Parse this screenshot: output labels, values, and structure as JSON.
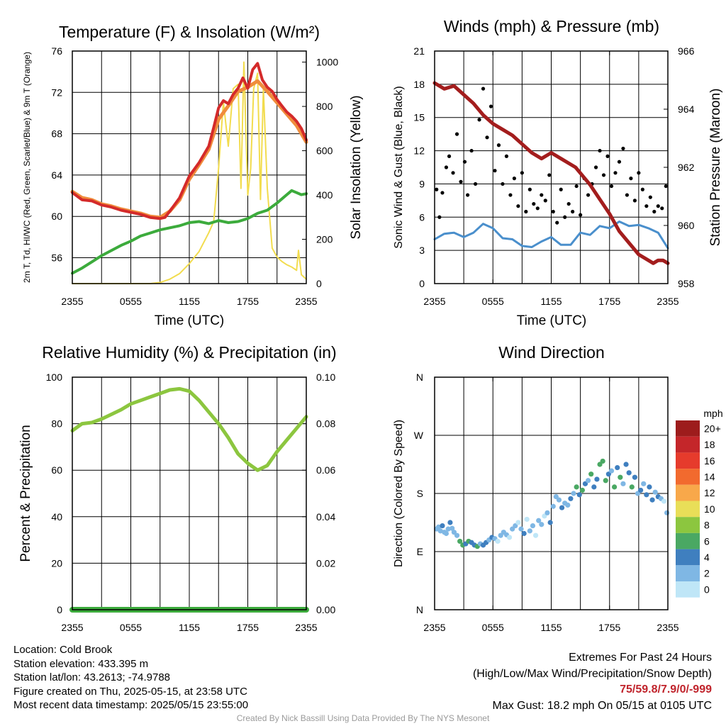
{
  "chart_data": [
    {
      "type": "line",
      "title": "Temperature (F) & Insolation (W/m²)",
      "xlabel": "Time (UTC)",
      "ylabel": "2m T, Td, HI/WC (Red, Green, Scarlet/Blue) & 9m T (Orange)",
      "ylabel_right": "Solar Insolation (Yellow)",
      "x_ticks": [
        "2355",
        "0555",
        "1155",
        "1755",
        "2355"
      ],
      "x_range_hours": [
        0,
        24
      ],
      "ylim": [
        53.5,
        76
      ],
      "yticks": [
        56,
        60,
        64,
        68,
        72,
        76
      ],
      "ylim_right": [
        0,
        1050
      ],
      "yticks_right": [
        0,
        200,
        400,
        600,
        800,
        1000
      ],
      "grid": true,
      "series": [
        {
          "name": "2m T",
          "color": "#d42a2a",
          "axis": "left",
          "x_hours": [
            0,
            1,
            2,
            3,
            4,
            5,
            6,
            7,
            8,
            9,
            9.5,
            10,
            11,
            12,
            13,
            14,
            14.5,
            15,
            15.5,
            16,
            16.5,
            17,
            17.5,
            18,
            18.5,
            19,
            19.5,
            20,
            20.5,
            21,
            21.5,
            22,
            22.5,
            23,
            23.5,
            24
          ],
          "values": [
            62.3,
            61.6,
            61.5,
            61.1,
            60.9,
            60.6,
            60.4,
            60.2,
            59.9,
            59.8,
            59.9,
            60.5,
            61.8,
            63.9,
            65.2,
            66.8,
            68.6,
            70.5,
            71.2,
            70.9,
            71.8,
            72.4,
            73.4,
            72.4,
            74.2,
            74.8,
            73.2,
            72.5,
            72.1,
            71.3,
            70.7,
            70.1,
            69.7,
            69.2,
            68.5,
            67.4
          ]
        },
        {
          "name": "2m Td",
          "color": "#3cab3c",
          "axis": "left",
          "x_hours": [
            0,
            1,
            2,
            3,
            4,
            5,
            6,
            7,
            8,
            9,
            10,
            11,
            12,
            13,
            14,
            15,
            16,
            17,
            18,
            19,
            20,
            21,
            22,
            22.5,
            23,
            23.5,
            24
          ],
          "values": [
            54.5,
            55.0,
            55.6,
            56.2,
            56.7,
            57.2,
            57.6,
            58.1,
            58.4,
            58.7,
            58.9,
            59.1,
            59.4,
            59.5,
            59.3,
            59.6,
            59.4,
            59.5,
            59.8,
            60.3,
            60.6,
            61.3,
            62.1,
            62.5,
            62.3,
            62.1,
            62.2
          ]
        },
        {
          "name": "9m T",
          "color": "#f08c3c",
          "axis": "left",
          "x_hours": [
            0,
            1,
            2,
            3,
            4,
            5,
            6,
            7,
            8,
            9,
            10,
            11,
            12,
            13,
            14,
            15,
            16,
            17,
            18,
            19,
            20,
            21,
            22,
            23,
            24
          ],
          "values": [
            62.4,
            61.8,
            61.6,
            61.2,
            61.0,
            60.7,
            60.5,
            60.3,
            60.0,
            59.9,
            60.5,
            61.6,
            63.6,
            65.0,
            66.5,
            69.4,
            70.7,
            72.1,
            72.5,
            73.1,
            72.1,
            71.0,
            69.9,
            68.8,
            67.2
          ]
        },
        {
          "name": "Solar Insolation",
          "color": "#f2dc4e",
          "axis": "right",
          "x_hours": [
            0,
            8,
            9,
            10,
            11,
            12,
            13,
            14,
            14.5,
            15,
            15.5,
            16,
            16.5,
            17,
            17.3,
            17.6,
            18,
            18.3,
            18.6,
            19,
            19.3,
            19.6,
            20,
            20.5,
            21,
            21.5,
            22,
            22.5,
            23,
            23.2,
            23.5,
            24
          ],
          "values": [
            0,
            0,
            5,
            20,
            45,
            90,
            145,
            230,
            280,
            520,
            820,
            620,
            880,
            900,
            430,
            1000,
            400,
            520,
            880,
            950,
            380,
            880,
            430,
            160,
            120,
            100,
            85,
            75,
            60,
            150,
            40,
            20
          ]
        }
      ]
    },
    {
      "type": "scatter",
      "title": "Winds (mph) & Pressure (mb)",
      "xlabel": "Time (UTC)",
      "ylabel": "Sonic Wind & Gust (Blue, Black)",
      "ylabel_right": "Station Pressure (Maroon)",
      "x_ticks": [
        "2355",
        "0555",
        "1155",
        "1755",
        "2355"
      ],
      "x_range_hours": [
        0,
        24
      ],
      "ylim": [
        0,
        21
      ],
      "yticks": [
        0,
        3,
        6,
        9,
        12,
        15,
        18,
        21
      ],
      "ylim_right": [
        958,
        966
      ],
      "yticks_right": [
        958,
        960,
        962,
        964,
        966
      ],
      "grid": true,
      "series": [
        {
          "name": "Sonic Wind",
          "color": "#4a8fcc",
          "kind": "line",
          "x_hours": [
            0,
            1,
            2,
            3,
            4,
            5,
            6,
            7,
            8,
            9,
            10,
            11,
            12,
            13,
            14,
            15,
            16,
            17,
            18,
            19,
            20,
            21,
            22,
            23,
            24
          ],
          "values": [
            4.0,
            4.5,
            4.6,
            4.2,
            4.6,
            5.4,
            5.0,
            4.1,
            4.0,
            3.4,
            3.3,
            3.8,
            4.2,
            3.5,
            3.5,
            4.6,
            4.4,
            5.2,
            5.0,
            5.6,
            5.2,
            5.3,
            5.0,
            4.6,
            3.2
          ]
        },
        {
          "name": "Gust",
          "color": "#000000",
          "kind": "scatter",
          "x_hours": [
            0.2,
            0.5,
            0.8,
            1.2,
            1.5,
            1.9,
            2.3,
            2.7,
            3.1,
            3.4,
            3.8,
            4.2,
            4.6,
            5.0,
            5.4,
            5.8,
            6.2,
            6.6,
            7.0,
            7.4,
            7.8,
            8.2,
            8.6,
            9.0,
            9.4,
            9.8,
            10.2,
            10.6,
            11.0,
            11.4,
            11.8,
            12.2,
            12.6,
            13.0,
            13.4,
            13.8,
            14.2,
            14.6,
            15.0,
            15.4,
            15.8,
            16.2,
            16.6,
            17.0,
            17.4,
            17.8,
            18.2,
            18.6,
            19.0,
            19.4,
            19.8,
            20.2,
            20.6,
            21.0,
            21.4,
            21.8,
            22.2,
            22.6,
            23.0,
            23.4,
            23.8
          ],
          "values": [
            8.5,
            6.0,
            8.2,
            10.5,
            11.5,
            10.0,
            13.5,
            9.2,
            11.0,
            8.0,
            12.0,
            9.0,
            14.8,
            17.6,
            13.2,
            16.0,
            10.2,
            12.5,
            9.0,
            11.5,
            8.0,
            9.5,
            7.0,
            10.0,
            6.5,
            8.5,
            7.2,
            6.8,
            8.0,
            7.5,
            9.8,
            6.5,
            5.5,
            8.5,
            6.0,
            7.2,
            6.5,
            8.8,
            6.2,
            9.5,
            8.0,
            9.0,
            10.5,
            12.0,
            9.8,
            11.5,
            8.8,
            10.0,
            11.0,
            12.2,
            8.0,
            9.5,
            7.5,
            10.0,
            8.5,
            7.0,
            7.8,
            6.5,
            7.0,
            6.8,
            8.8
          ]
        },
        {
          "name": "Station Pressure",
          "color": "#a31d1d",
          "kind": "line",
          "axis": "right",
          "x_hours": [
            0,
            1,
            2,
            3,
            4,
            5,
            6,
            7,
            8,
            9,
            10,
            11,
            12,
            13,
            14,
            14.5,
            15,
            16,
            17,
            18,
            19,
            20,
            21,
            22,
            22.5,
            23,
            23.5,
            24
          ],
          "values": [
            964.9,
            964.7,
            964.8,
            964.5,
            964.2,
            963.8,
            963.5,
            963.3,
            963.1,
            962.8,
            962.5,
            962.3,
            962.5,
            962.3,
            962.1,
            962.0,
            961.8,
            961.4,
            960.9,
            960.4,
            959.8,
            959.4,
            959.0,
            958.8,
            958.7,
            958.8,
            958.8,
            958.7
          ]
        }
      ]
    },
    {
      "type": "line",
      "title": "Relative Humidity (%) & Precipitation (in)",
      "ylabel": "Percent & Precipitation",
      "x_ticks": [
        "2355",
        "0555",
        "1155",
        "1755",
        "2355"
      ],
      "x_range_hours": [
        0,
        24
      ],
      "ylim": [
        0,
        100
      ],
      "yticks": [
        0,
        20,
        40,
        60,
        80,
        100
      ],
      "ylim_right": [
        0,
        0.1
      ],
      "yticks_right": [
        "0.00",
        "0.02",
        "0.04",
        "0.06",
        "0.08",
        "0.10"
      ],
      "grid": true,
      "series": [
        {
          "name": "Relative Humidity",
          "color": "#8cc63f",
          "axis": "left",
          "x_hours": [
            0,
            1,
            2,
            3,
            4,
            5,
            6,
            7,
            8,
            9,
            10,
            11,
            12,
            13,
            14,
            15,
            16,
            17,
            18,
            19,
            20,
            21,
            22,
            23,
            24
          ],
          "values": [
            77,
            80,
            80.5,
            82,
            84,
            86,
            88.5,
            90,
            91.5,
            93,
            94.5,
            95,
            94,
            90,
            85,
            80,
            74,
            67,
            63,
            60,
            62,
            68,
            73,
            78,
            83
          ]
        },
        {
          "name": "Precipitation",
          "color": "#3cab3c",
          "axis": "right",
          "x_hours": [
            0,
            24
          ],
          "values": [
            0,
            0
          ]
        }
      ]
    },
    {
      "type": "scatter",
      "title": "Wind Direction",
      "ylabel": "Direction (Colored By Speed)",
      "x_ticks": [
        "2355",
        "0555",
        "1155",
        "1755",
        "2355"
      ],
      "x_range_hours": [
        0,
        24
      ],
      "y_ticks": [
        "N",
        "E",
        "S",
        "W",
        "N"
      ],
      "ylim_degrees": [
        0,
        360
      ],
      "grid": true,
      "legend": {
        "title": "mph",
        "position": "right",
        "labels": [
          "20+",
          "18",
          "16",
          "14",
          "12",
          "10",
          "8",
          "6",
          "4",
          "2",
          "0"
        ],
        "colors": [
          "#9d1c1c",
          "#c4262a",
          "#e63b2c",
          "#f26a2e",
          "#f8a84a",
          "#e9de58",
          "#8cc63f",
          "#4aa863",
          "#3f7fbf",
          "#7fb7e4",
          "#bfe6f7"
        ]
      },
      "points": {
        "x_hours": [
          0.2,
          0.4,
          0.6,
          0.8,
          1.0,
          1.2,
          1.4,
          1.6,
          1.8,
          2.0,
          2.3,
          2.6,
          2.9,
          3.2,
          3.5,
          3.8,
          4.1,
          4.4,
          4.7,
          5.0,
          5.3,
          5.6,
          5.9,
          6.2,
          6.5,
          6.8,
          7.1,
          7.4,
          7.7,
          8.0,
          8.3,
          8.6,
          8.9,
          9.2,
          9.5,
          9.8,
          10.1,
          10.4,
          10.7,
          11.0,
          11.3,
          11.6,
          11.9,
          12.2,
          12.5,
          12.8,
          13.1,
          13.4,
          13.7,
          14.0,
          14.3,
          14.6,
          14.9,
          15.2,
          15.5,
          15.8,
          16.1,
          16.4,
          16.7,
          17.0,
          17.3,
          17.6,
          17.9,
          18.2,
          18.5,
          18.8,
          19.1,
          19.4,
          19.7,
          20.0,
          20.3,
          20.6,
          20.9,
          21.2,
          21.5,
          21.8,
          22.1,
          22.4,
          22.7,
          23.0,
          23.3,
          23.6,
          23.9
        ],
        "degrees": [
          125,
          128,
          122,
          130,
          120,
          118,
          125,
          135,
          126,
          120,
          115,
          106,
          100,
          102,
          106,
          104,
          100,
          98,
          102,
          100,
          104,
          108,
          112,
          110,
          106,
          115,
          120,
          116,
          112,
          125,
          130,
          135,
          125,
          118,
          140,
          122,
          130,
          115,
          138,
          132,
          145,
          150,
          135,
          160,
          175,
          170,
          158,
          165,
          162,
          172,
          180,
          190,
          178,
          185,
          195,
          200,
          210,
          190,
          202,
          225,
          230,
          200,
          210,
          215,
          190,
          220,
          205,
          195,
          225,
          212,
          190,
          205,
          180,
          185,
          195,
          178,
          190,
          170,
          182,
          175,
          172,
          168,
          150
        ],
        "speed_mph": [
          3,
          2,
          3,
          4,
          2,
          3,
          3,
          4,
          2,
          3,
          3,
          6,
          6,
          4,
          7,
          5,
          4,
          6,
          3,
          4,
          4,
          2,
          4,
          3,
          1,
          2,
          3,
          2,
          1,
          3,
          2,
          1,
          2,
          4,
          1,
          2,
          3,
          1,
          2,
          3,
          1,
          2,
          4,
          3,
          3,
          2,
          4,
          3,
          3,
          4,
          3,
          6,
          4,
          7,
          5,
          3,
          6,
          5,
          4,
          7,
          6,
          7,
          4,
          3,
          6,
          5,
          6,
          3,
          5,
          4,
          6,
          4,
          3,
          5,
          3,
          4,
          4,
          4,
          3,
          4,
          2,
          1,
          3
        ]
      }
    }
  ],
  "station_info": {
    "location": "Location: Cold Brook",
    "elevation": "Station elevation: 433.395 m",
    "latlon": "Station lat/lon: 43.2613; -74.9788",
    "created": "Figure created on Thu, 2025-05-15, at 23:58 UTC",
    "recent": "Most recent data timestamp: 2025/05/15 23:55:00"
  },
  "extremes": {
    "title": "Extremes For Past 24 Hours",
    "subtitle": "(High/Low/Max Wind/Precipitation/Snow Depth)",
    "values": "75/59.8/7.9/0/-999",
    "max_gust": "Max Gust: 18.2 mph On 05/15 at 0105 UTC"
  },
  "credit": "Created By Nick Bassill Using Data Provided By The NYS Mesonet"
}
